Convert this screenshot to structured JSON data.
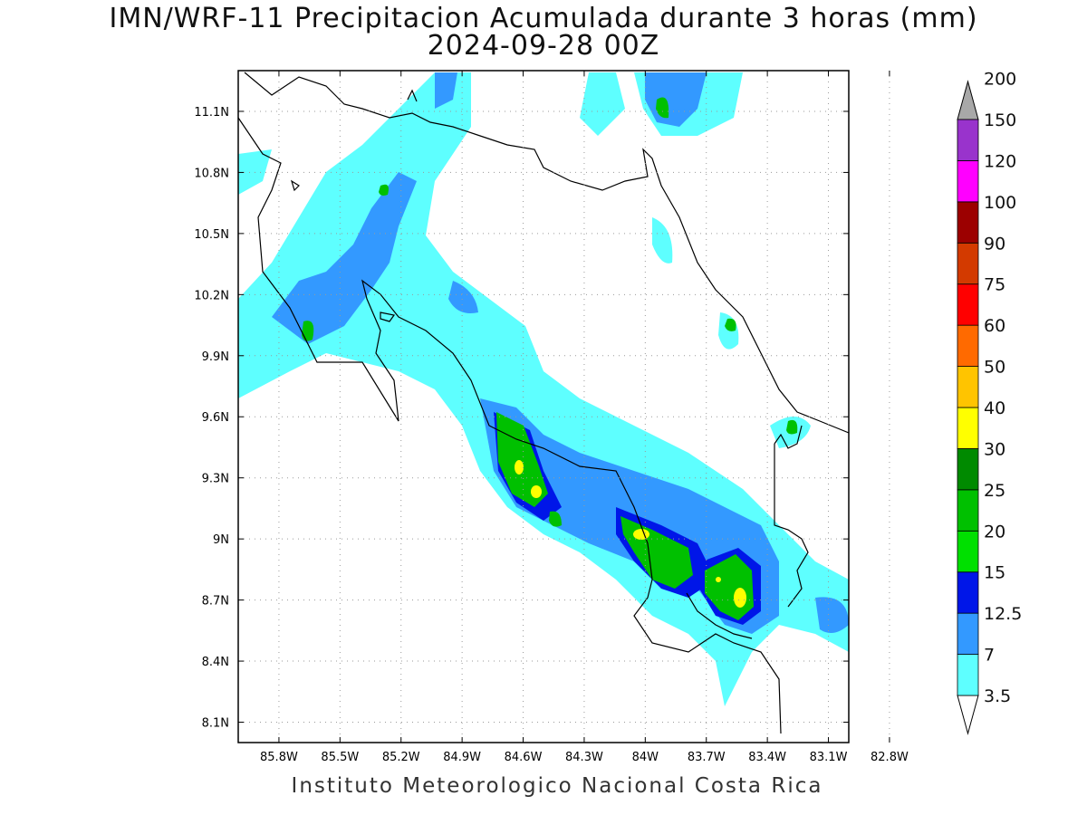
{
  "title": "IMN/WRF-11 Precipitacion Acumulada durante 3 horas (mm)",
  "subtitle": "2024-09-28 00Z",
  "footer": "Instituto Meteorologico Nacional Costa Rica",
  "map": {
    "lon_range": [
      -86.0,
      -83.0
    ],
    "lat_range": [
      8.0,
      11.3
    ],
    "lon_ticks": [
      "85.8W",
      "85.5W",
      "85.2W",
      "84.9W",
      "84.6W",
      "84.3W",
      "84W",
      "83.7W",
      "83.4W",
      "83.1W",
      "82.8W"
    ],
    "lat_ticks": [
      "11.1N",
      "10.8N",
      "10.5N",
      "10.2N",
      "9.9N",
      "9.6N",
      "9.3N",
      "9N",
      "8.7N",
      "8.4N",
      "8.1N"
    ],
    "grid": "dotted"
  },
  "colorbar": {
    "levels": [
      "3.5",
      "7",
      "12.5",
      "15",
      "20",
      "25",
      "30",
      "40",
      "50",
      "60",
      "75",
      "90",
      "100",
      "120",
      "150",
      "200"
    ],
    "colors": [
      "#5effff",
      "#3399ff",
      "#0016e8",
      "#00e000",
      "#00c000",
      "#008a00",
      "#ffff00",
      "#ffc400",
      "#ff6a00",
      "#ff0000",
      "#d33a00",
      "#9c0000",
      "#ff00ff",
      "#9933cc",
      "#f5f5f5",
      "#a8a8a8"
    ]
  }
}
